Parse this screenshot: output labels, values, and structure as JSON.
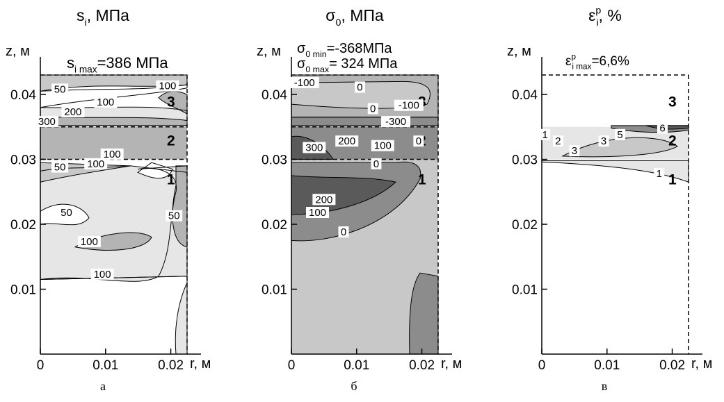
{
  "colors": {
    "level1": "#e6e6e6",
    "level2": "#c8c8c8",
    "level3": "#b4b4b4",
    "level4": "#8c8c8c",
    "level5": "#5a5a5a",
    "white": "#ffffff",
    "line": "#000000"
  },
  "chart_data": [
    {
      "type": "heatmap",
      "id": "a",
      "title_parts": {
        "base": "s",
        "sub": "i",
        "rest": ", МПа"
      },
      "max_label": {
        "base": "s",
        "sub": "i max",
        "rest": "=386 МПа"
      },
      "min_label": null,
      "ylabel": "z, м",
      "xlabel": "r, м",
      "xticks": [
        "0",
        "0.01",
        "0.02"
      ],
      "yticks": [
        "0.01",
        "0.02",
        "0.03",
        "0.04"
      ],
      "xlim": [
        0,
        0.0225
      ],
      "ylim": [
        0,
        0.043
      ],
      "caption": "а",
      "region_labels": [
        "3",
        "2",
        "1"
      ],
      "contour_labels": [
        "50",
        "100",
        "200",
        "300",
        "100",
        "100",
        "50",
        "100",
        "50",
        "100",
        "100",
        "50"
      ]
    },
    {
      "type": "heatmap",
      "id": "b",
      "title_parts": {
        "base": "σ",
        "sub": "0",
        "rest": ", МПа"
      },
      "min_label": {
        "base": "σ",
        "sub": "0 min",
        "rest": "=-368МПа"
      },
      "max_label": {
        "base": "σ",
        "sub": "0 max",
        "rest": "= 324 МПа"
      },
      "ylabel": "z, м",
      "xlabel": "r, м",
      "xticks": [
        "0",
        "0.01",
        "0.02"
      ],
      "yticks": [
        "0.01",
        "0.02",
        "0.03",
        "0.04"
      ],
      "xlim": [
        0,
        0.0225
      ],
      "ylim": [
        0,
        0.043
      ],
      "caption": "б",
      "region_labels": [
        "3",
        "2",
        "1"
      ],
      "contour_labels": [
        "-100",
        "0",
        "0",
        "-100",
        "-300",
        "300",
        "200",
        "100",
        "0",
        "0",
        "200",
        "100",
        "0"
      ]
    },
    {
      "type": "heatmap",
      "id": "c",
      "title_parts": {
        "base": "ε",
        "sub": "i",
        "sup": "p",
        "rest": ", %"
      },
      "max_label": {
        "base": "ε",
        "sub": "i max",
        "sup": "p",
        "rest": "=6,6%"
      },
      "min_label": null,
      "ylabel": "z, м",
      "xlabel": "r, м",
      "xticks": [
        "0",
        "0.01",
        "0.02"
      ],
      "yticks": [
        "0.01",
        "0.02",
        "0.03",
        "0.04"
      ],
      "xlim": [
        0,
        0.0225
      ],
      "ylim": [
        0,
        0.043
      ],
      "caption": "в",
      "region_labels": [
        "3",
        "2",
        "1"
      ],
      "contour_labels": [
        "1",
        "2",
        "3",
        "5",
        "6",
        "3",
        "1"
      ]
    }
  ]
}
